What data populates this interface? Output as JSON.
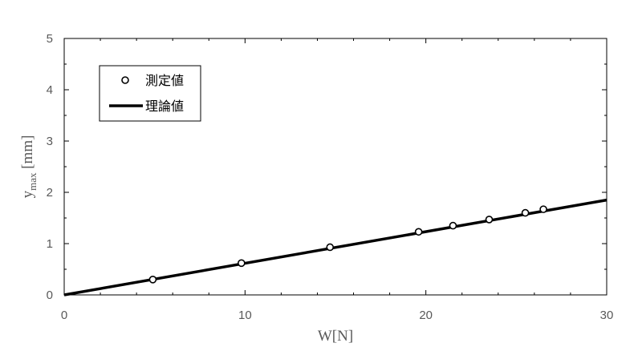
{
  "chart_data": {
    "type": "scatter",
    "xlabel": "W[N]",
    "ylabel_main": "y",
    "ylabel_sub": "max",
    "ylabel_unit": " [mm]",
    "xlim": [
      0,
      30
    ],
    "ylim": [
      0,
      5
    ],
    "xticks": [
      0,
      10,
      20,
      30
    ],
    "yticks": [
      0,
      1,
      2,
      3,
      4,
      5
    ],
    "grid": false,
    "legend_position": "top-left",
    "series": [
      {
        "name": "測定値",
        "kind": "markers",
        "x": [
          4.9,
          9.8,
          14.7,
          19.6,
          21.5,
          23.5,
          25.5,
          26.5
        ],
        "y": [
          0.3,
          0.62,
          0.93,
          1.23,
          1.35,
          1.47,
          1.6,
          1.67
        ]
      },
      {
        "name": "理論値",
        "kind": "line",
        "x": [
          0,
          30
        ],
        "y": [
          0,
          1.85
        ]
      }
    ]
  }
}
